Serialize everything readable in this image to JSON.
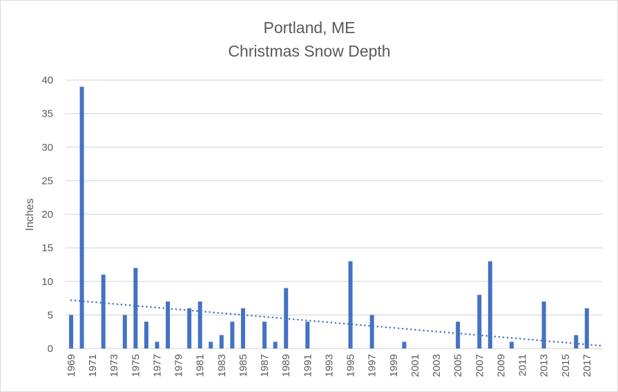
{
  "chart_data": {
    "type": "bar",
    "title": "Portland, ME",
    "subtitle": "Christmas Snow Depth",
    "xlabel": "",
    "ylabel": "Inches",
    "ylim": [
      0,
      40
    ],
    "yticks": [
      0,
      5,
      10,
      15,
      20,
      25,
      30,
      35,
      40
    ],
    "grid": true,
    "categories": [
      1969,
      1970,
      1971,
      1972,
      1973,
      1974,
      1975,
      1976,
      1977,
      1978,
      1979,
      1980,
      1981,
      1982,
      1983,
      1984,
      1985,
      1986,
      1987,
      1988,
      1989,
      1990,
      1991,
      1992,
      1993,
      1994,
      1995,
      1996,
      1997,
      1998,
      1999,
      2000,
      2001,
      2002,
      2003,
      2004,
      2005,
      2006,
      2007,
      2008,
      2009,
      2010,
      2011,
      2012,
      2013,
      2014,
      2015,
      2016,
      2017,
      2018
    ],
    "xtick_labels": [
      "1969",
      "1971",
      "1973",
      "1975",
      "1977",
      "1979",
      "1981",
      "1983",
      "1985",
      "1987",
      "1989",
      "1991",
      "1993",
      "1995",
      "1997",
      "1999",
      "2001",
      "2003",
      "2005",
      "2007",
      "2009",
      "2011",
      "2013",
      "2015",
      "2017"
    ],
    "values": [
      5,
      39,
      0,
      11,
      0,
      5,
      12,
      4,
      1,
      7,
      0,
      6,
      7,
      1,
      2,
      4,
      6,
      0,
      4,
      1,
      9,
      0,
      4,
      0,
      0,
      0,
      13,
      0,
      5,
      0,
      0,
      1,
      0,
      0,
      0,
      0,
      4,
      0,
      8,
      13,
      0,
      1,
      0,
      0,
      7,
      0,
      0,
      2,
      6,
      0
    ],
    "trendline": {
      "type": "linear",
      "style": "dotted",
      "start": 7.2,
      "end": 0.4
    },
    "bar_color": "#4472C4"
  }
}
